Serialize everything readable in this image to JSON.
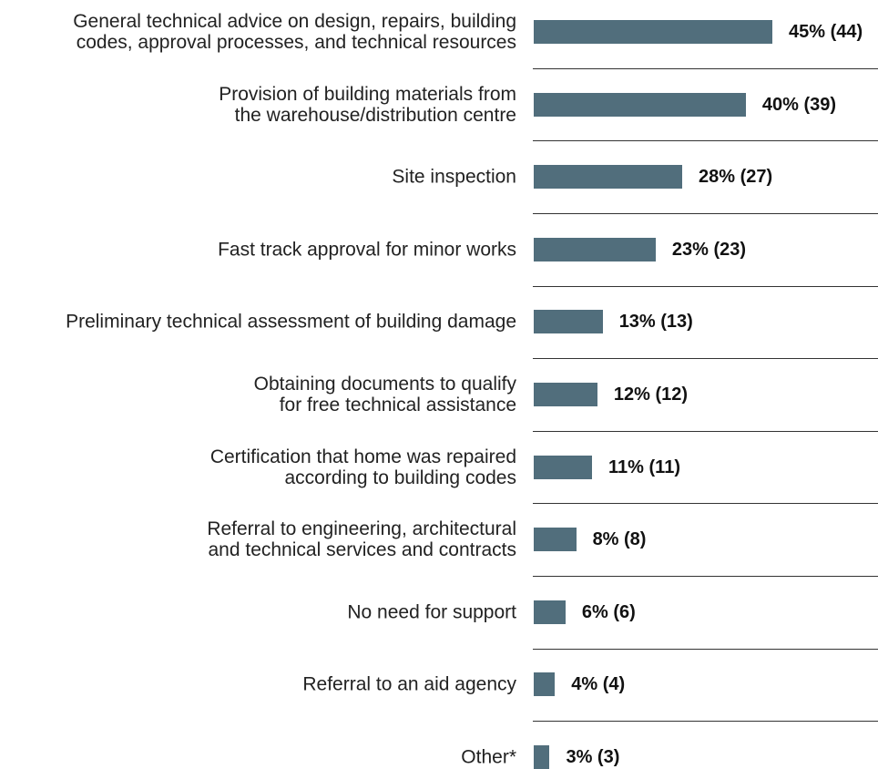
{
  "chart_data": {
    "type": "bar",
    "orientation": "horizontal",
    "bar_color": "#516e7c",
    "categories": [
      "General technical advice on design, repairs, building\ncodes, approval processes, and technical resources",
      "Provision of building materials from\nthe warehouse/distribution centre",
      "Site inspection",
      "Fast track approval for minor works",
      "Preliminary technical assessment of building damage",
      "Obtaining documents to qualify\nfor free technical assistance",
      "Certification that home was repaired\naccording to building codes",
      "Referral to engineering, architectural\nand technical services and contracts",
      "No need for support",
      "Referral to an aid agency",
      "Other*"
    ],
    "values": [
      45,
      40,
      28,
      23,
      13,
      12,
      11,
      8,
      6,
      4,
      3
    ],
    "counts": [
      44,
      39,
      27,
      23,
      13,
      12,
      11,
      8,
      6,
      4,
      3
    ],
    "value_labels": [
      "45% (44)",
      "40% (39)",
      "28% (27)",
      "23% (23)",
      "13% (13)",
      "12% (12)",
      "11% (11)",
      "8% (8)",
      "6% (6)",
      "4% (4)",
      "3% (3)"
    ],
    "xlim": [
      0,
      100
    ],
    "grid": false,
    "legend": "none"
  }
}
